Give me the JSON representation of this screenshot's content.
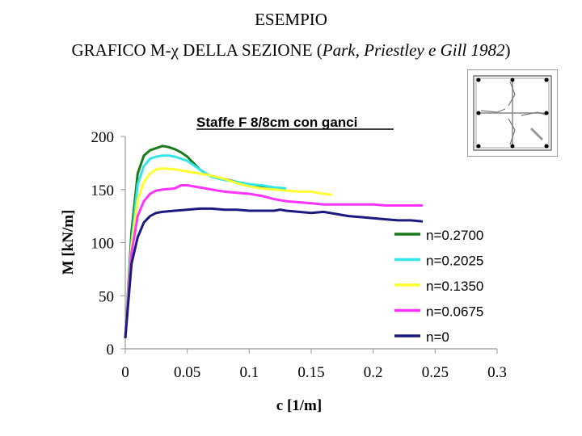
{
  "header": {
    "line1": "ESEMPIO",
    "line2_prefix": "GRAFICO M-χ DELLA SEZIONE (",
    "line2_ref": "Park, Priestley e Gill 1982",
    "line2_suffix": ")"
  },
  "chart_data": {
    "type": "line",
    "title": "Staffe F 8/8cm con ganci",
    "xlabel": "c  [1/m]",
    "ylabel": "M [kN/m]",
    "xlim": [
      0,
      0.3
    ],
    "ylim": [
      0,
      200
    ],
    "x_ticks": [
      "0",
      "0.05",
      "0.1",
      "0.15",
      "0.2",
      "0.25",
      "0.3"
    ],
    "y_ticks": [
      "0",
      "50",
      "100",
      "150",
      "200"
    ],
    "grid": false,
    "legend_position": "right",
    "series": [
      {
        "name": "n=0.2700",
        "color": "#1a7a1a",
        "points": [
          [
            0,
            10
          ],
          [
            0.005,
            110
          ],
          [
            0.01,
            165
          ],
          [
            0.015,
            182
          ],
          [
            0.02,
            187
          ],
          [
            0.025,
            189
          ],
          [
            0.03,
            191
          ],
          [
            0.035,
            190
          ],
          [
            0.04,
            188
          ],
          [
            0.045,
            185
          ],
          [
            0.05,
            181
          ],
          [
            0.055,
            175
          ],
          [
            0.06,
            169
          ],
          [
            0.065,
            165
          ],
          [
            0.07,
            162
          ],
          [
            0.08,
            160
          ],
          [
            0.09,
            157
          ],
          [
            0.1,
            155
          ],
          [
            0.11,
            153
          ],
          [
            0.12,
            152
          ]
        ]
      },
      {
        "name": "n=0.2025",
        "color": "#33e6e6",
        "points": [
          [
            0,
            10
          ],
          [
            0.005,
            100
          ],
          [
            0.01,
            155
          ],
          [
            0.015,
            172
          ],
          [
            0.02,
            179
          ],
          [
            0.025,
            181
          ],
          [
            0.03,
            182
          ],
          [
            0.035,
            182
          ],
          [
            0.04,
            181
          ],
          [
            0.045,
            179
          ],
          [
            0.05,
            177
          ],
          [
            0.055,
            173
          ],
          [
            0.06,
            169
          ],
          [
            0.065,
            165
          ],
          [
            0.07,
            162
          ],
          [
            0.08,
            159
          ],
          [
            0.09,
            157
          ],
          [
            0.1,
            155
          ],
          [
            0.11,
            154
          ],
          [
            0.12,
            152
          ],
          [
            0.13,
            151
          ]
        ]
      },
      {
        "name": "n=0.1350",
        "color": "#ffff33",
        "points": [
          [
            0,
            10
          ],
          [
            0.005,
            95
          ],
          [
            0.01,
            140
          ],
          [
            0.015,
            157
          ],
          [
            0.02,
            165
          ],
          [
            0.025,
            169
          ],
          [
            0.03,
            170
          ],
          [
            0.04,
            169
          ],
          [
            0.05,
            167
          ],
          [
            0.06,
            165
          ],
          [
            0.07,
            163
          ],
          [
            0.08,
            160
          ],
          [
            0.09,
            156
          ],
          [
            0.1,
            153
          ],
          [
            0.11,
            151
          ],
          [
            0.12,
            150
          ],
          [
            0.13,
            149
          ],
          [
            0.14,
            148
          ],
          [
            0.15,
            148
          ],
          [
            0.16,
            146
          ],
          [
            0.167,
            145
          ]
        ]
      },
      {
        "name": "n=0.0675",
        "color": "#ff33ff",
        "points": [
          [
            0,
            10
          ],
          [
            0.005,
            90
          ],
          [
            0.01,
            125
          ],
          [
            0.015,
            139
          ],
          [
            0.02,
            146
          ],
          [
            0.025,
            149
          ],
          [
            0.03,
            150
          ],
          [
            0.04,
            151
          ],
          [
            0.045,
            154
          ],
          [
            0.05,
            154
          ],
          [
            0.06,
            152
          ],
          [
            0.07,
            150
          ],
          [
            0.08,
            148
          ],
          [
            0.09,
            147
          ],
          [
            0.1,
            146
          ],
          [
            0.11,
            144
          ],
          [
            0.12,
            141
          ],
          [
            0.13,
            139
          ],
          [
            0.14,
            138
          ],
          [
            0.15,
            137
          ],
          [
            0.16,
            136
          ],
          [
            0.2,
            136
          ],
          [
            0.21,
            135
          ],
          [
            0.24,
            135
          ]
        ]
      },
      {
        "name": "n=0",
        "color": "#1a1a80",
        "points": [
          [
            0,
            10
          ],
          [
            0.005,
            80
          ],
          [
            0.01,
            105
          ],
          [
            0.015,
            119
          ],
          [
            0.02,
            125
          ],
          [
            0.025,
            128
          ],
          [
            0.03,
            129
          ],
          [
            0.04,
            130
          ],
          [
            0.05,
            131
          ],
          [
            0.06,
            132
          ],
          [
            0.07,
            132
          ],
          [
            0.08,
            131
          ],
          [
            0.09,
            131
          ],
          [
            0.1,
            130
          ],
          [
            0.11,
            130
          ],
          [
            0.12,
            130
          ],
          [
            0.125,
            131
          ],
          [
            0.13,
            130
          ],
          [
            0.14,
            129
          ],
          [
            0.15,
            128
          ],
          [
            0.16,
            129
          ],
          [
            0.17,
            127
          ],
          [
            0.18,
            125
          ],
          [
            0.19,
            124
          ],
          [
            0.2,
            123
          ],
          [
            0.21,
            122
          ],
          [
            0.22,
            121
          ],
          [
            0.23,
            121
          ],
          [
            0.24,
            120
          ]
        ]
      }
    ]
  }
}
